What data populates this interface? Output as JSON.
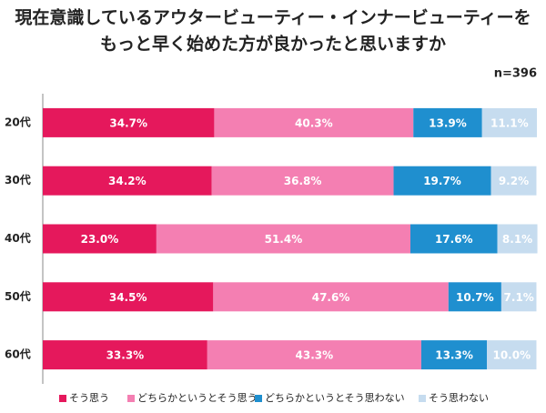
{
  "chart_data": {
    "type": "stacked-barh",
    "title": [
      "現在意識しているアウタービューティー・インナービューティーを",
      "もっと早く始めた方が良かったと思いますか"
    ],
    "annotation": "n=396",
    "categories": [
      "20代",
      "30代",
      "40代",
      "50代",
      "60代"
    ],
    "xlim": [
      0,
      100
    ],
    "legend": "bottom",
    "series": [
      {
        "name": "そう思う",
        "color": "#e5185c",
        "values": [
          34.7,
          34.2,
          23.0,
          34.5,
          33.3
        ],
        "value_labels": [
          "34.7%",
          "34.2%",
          "23.0%",
          "34.5%",
          "33.3%"
        ]
      },
      {
        "name": "どちらかというとそう思う",
        "color": "#f47fb2",
        "values": [
          40.3,
          36.8,
          51.4,
          47.6,
          43.3
        ],
        "value_labels": [
          "40.3%",
          "36.8%",
          "51.4%",
          "47.6%",
          "43.3%"
        ]
      },
      {
        "name": "どちらかというとそう思わない",
        "color": "#1f8fcf",
        "values": [
          13.9,
          19.7,
          17.6,
          10.7,
          13.3
        ],
        "value_labels": [
          "13.9%",
          "19.7%",
          "17.6%",
          "10.7%",
          "13.3%"
        ]
      },
      {
        "name": "そう思わない",
        "color": "#c6dcef",
        "values": [
          11.1,
          9.2,
          8.1,
          7.1,
          10.0
        ],
        "value_labels": [
          "11.1%",
          "9.2%",
          "8.1%",
          "7.1%",
          "10.0%"
        ]
      }
    ]
  }
}
